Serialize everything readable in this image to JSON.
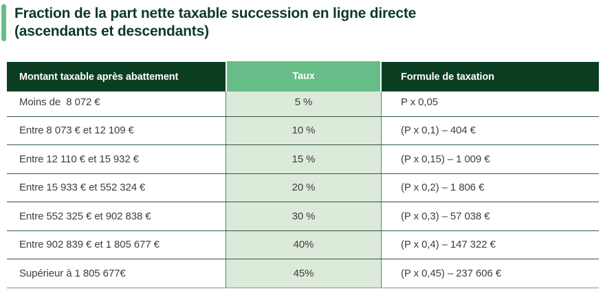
{
  "title": {
    "line1": "Fraction de la part nette taxable succession en ligne directe",
    "line2": "(ascendants et descendants)"
  },
  "colors": {
    "accent_bar": "#66bd87",
    "title_text": "#0d3a23",
    "header_dark": "#0b3e21",
    "header_taux": "#66bd87",
    "taux_cell_bg": "#dcead9",
    "taux_cell_border": "#558463",
    "row_divider": "#2c5740",
    "body_text": "#3d3d3d",
    "header_text": "#ffffff"
  },
  "table": {
    "headers": [
      "Montant taxable après abattement",
      "Taux",
      "Formule de taxation"
    ],
    "rows": [
      {
        "montant": "Moins de  8 072 €",
        "taux": "5 %",
        "formule": "P x 0,05"
      },
      {
        "montant": "Entre 8 073 € et 12 109 €",
        "taux": "10 %",
        "formule": "(P x 0,1) – 404 €"
      },
      {
        "montant": "Entre 12 110 € et 15 932 €",
        "taux": "15 %",
        "formule": "(P x 0,15) – 1 009 €"
      },
      {
        "montant": "Entre 15 933 € et 552 324 €",
        "taux": "20 %",
        "formule": "(P x 0,2) – 1 806 €"
      },
      {
        "montant": "Entre 552 325 € et 902 838 €",
        "taux": "30 %",
        "formule": "(P x 0,3) – 57 038 €"
      },
      {
        "montant": "Entre 902 839 € et 1 805 677 €",
        "taux": "40%",
        "formule": "(P x 0,4) – 147 322 €"
      },
      {
        "montant": "Supérieur à 1 805 677€",
        "taux": "45%",
        "formule": "(P x 0,45) – 237 606 €"
      }
    ]
  }
}
